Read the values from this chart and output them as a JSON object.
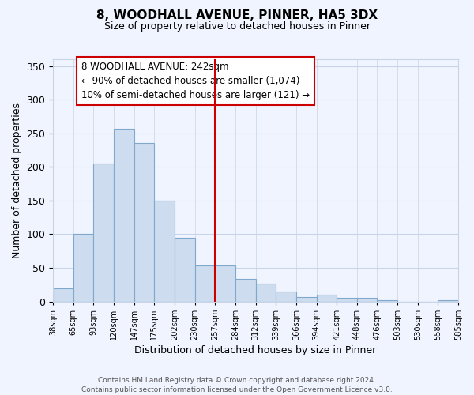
{
  "title": "8, WOODHALL AVENUE, PINNER, HA5 3DX",
  "subtitle": "Size of property relative to detached houses in Pinner",
  "xlabel": "Distribution of detached houses by size in Pinner",
  "ylabel": "Number of detached properties",
  "bar_labels": [
    "38sqm",
    "65sqm",
    "93sqm",
    "120sqm",
    "147sqm",
    "175sqm",
    "202sqm",
    "230sqm",
    "257sqm",
    "284sqm",
    "312sqm",
    "339sqm",
    "366sqm",
    "394sqm",
    "421sqm",
    "448sqm",
    "476sqm",
    "503sqm",
    "530sqm",
    "558sqm",
    "585sqm"
  ],
  "bar_heights": [
    19,
    100,
    205,
    257,
    236,
    150,
    95,
    53,
    53,
    33,
    26,
    15,
    6,
    10,
    5,
    5,
    2,
    0,
    0,
    2,
    0
  ],
  "bar_color": "#cddcee",
  "bar_edge_color": "#7fa8cc",
  "vline_x": 8,
  "vline_color": "#cc0000",
  "ylim": [
    0,
    360
  ],
  "yticks": [
    0,
    50,
    100,
    150,
    200,
    250,
    300,
    350
  ],
  "annotation_text": "8 WOODHALL AVENUE: 242sqm\n← 90% of detached houses are smaller (1,074)\n10% of semi-detached houses are larger (121) →",
  "footer_line1": "Contains HM Land Registry data © Crown copyright and database right 2024.",
  "footer_line2": "Contains public sector information licensed under the Open Government Licence v3.0.",
  "background_color": "#f0f4ff",
  "grid_color": "#c8d4e8"
}
